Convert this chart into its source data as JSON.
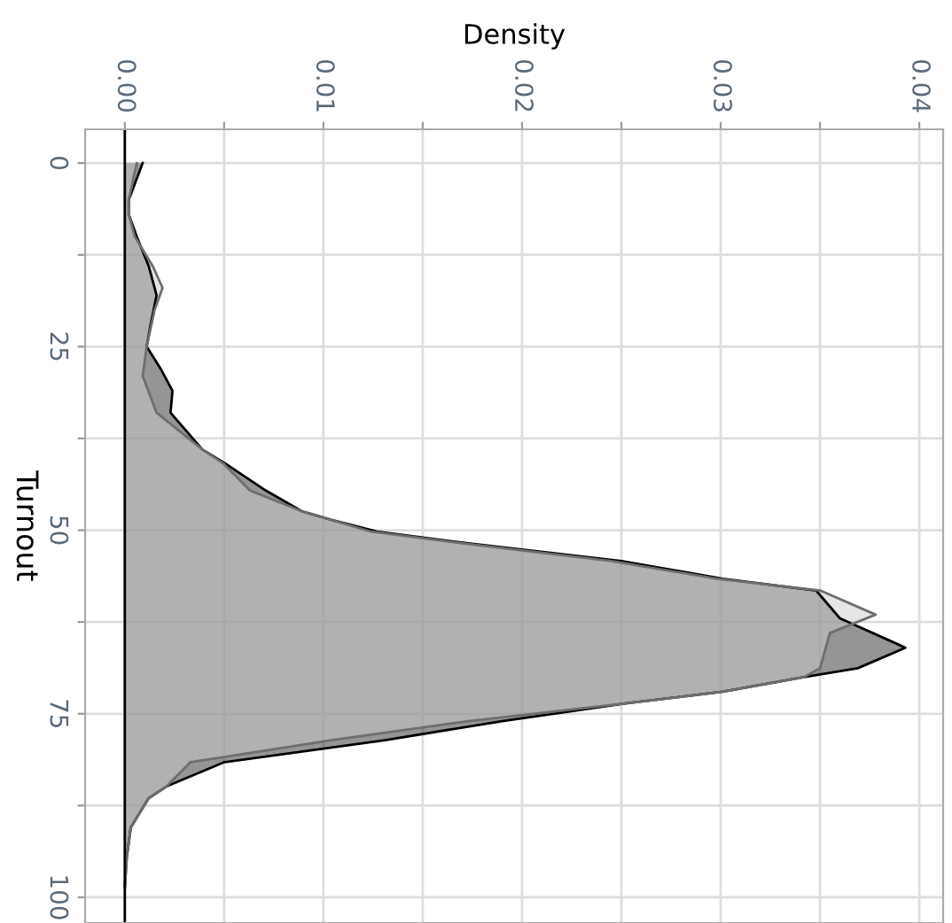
{
  "chart_data": {
    "type": "area",
    "orientation": "horizontal",
    "xlabel": "Density",
    "ylabel": "Turnout",
    "series": [
      {
        "color": "#959595",
        "x": [
          0,
          5,
          7,
          10,
          14,
          18,
          22,
          25,
          28,
          31,
          34,
          39,
          41,
          44.6,
          47.4,
          48.6,
          50.2,
          51.8,
          54.2,
          56.6,
          58.2,
          62,
          66,
          68.8,
          70,
          72,
          73.6,
          76,
          78.6,
          81.6,
          84.9,
          86.5,
          90.5,
          94.5,
          98.6
        ],
        "values": [
          0.0009,
          0.0002,
          0.0002,
          0.0006,
          0.0012,
          0.0016,
          0.0013,
          0.0011,
          0.0018,
          0.0024,
          0.0023,
          0.0039,
          0.0051,
          0.0071,
          0.0089,
          0.0104,
          0.0127,
          0.0173,
          0.025,
          0.0301,
          0.0348,
          0.036,
          0.0393,
          0.0369,
          0.0342,
          0.0301,
          0.0252,
          0.019,
          0.0131,
          0.005,
          0.0021,
          0.0012,
          0.0003,
          0.0001,
          0
        ]
      },
      {
        "color": "#e6e6e6",
        "x": [
          0,
          5,
          7,
          10,
          14,
          17,
          20,
          25,
          29,
          34,
          39,
          41,
          44.6,
          47.4,
          48.6,
          50.2,
          51.8,
          54.2,
          56.6,
          58.2,
          61.5,
          64,
          68.8,
          70,
          72,
          73.6,
          76,
          78.6,
          81.6,
          84.9,
          86.5,
          90.5,
          94.5,
          98.6
        ],
        "values": [
          0.0006,
          0.0002,
          0.0002,
          0.0005,
          0.0014,
          0.0019,
          0.0015,
          0.0011,
          0.0009,
          0.0016,
          0.0039,
          0.005,
          0.0063,
          0.0089,
          0.0104,
          0.0124,
          0.017,
          0.0245,
          0.0298,
          0.035,
          0.0378,
          0.0355,
          0.035,
          0.0342,
          0.0301,
          0.0252,
          0.0173,
          0.0104,
          0.0033,
          0.0021,
          0.0012,
          0.0003,
          0.0001,
          0
        ]
      }
    ],
    "xlim": [
      -0.002,
      0.0412
    ],
    "xticks": [
      {
        "value": 0,
        "label": "0.00"
      },
      {
        "value": 0.005,
        "label": null
      },
      {
        "value": 0.01,
        "label": "0.01"
      },
      {
        "value": 0.015,
        "label": null
      },
      {
        "value": 0.02,
        "label": "0.02"
      },
      {
        "value": 0.025,
        "label": null
      },
      {
        "value": 0.03,
        "label": "0.03"
      },
      {
        "value": 0.035,
        "label": null
      },
      {
        "value": 0.04,
        "label": "0.04"
      }
    ],
    "ylim": [
      103.5,
      -4.6
    ],
    "yticks": [
      0,
      {
        "value": 12.5,
        "label": null
      },
      25,
      {
        "value": 37.5,
        "label": null
      },
      50,
      {
        "value": 62.5,
        "label": null
      },
      75,
      {
        "value": 87.5,
        "label": null
      },
      100
    ],
    "grid": true
  }
}
